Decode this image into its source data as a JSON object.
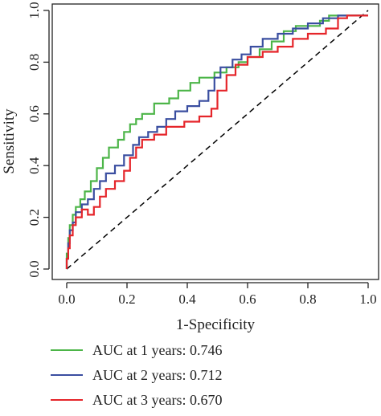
{
  "chart_data": {
    "type": "line",
    "title": "",
    "xlabel": "1-Specificity",
    "ylabel": "Sensitivity",
    "xlim": [
      0,
      1
    ],
    "ylim": [
      0,
      1
    ],
    "x_ticks": [
      "0.0",
      "0.2",
      "0.4",
      "0.6",
      "0.8",
      "1.0"
    ],
    "y_ticks": [
      "0.0",
      "0.2",
      "0.4",
      "0.6",
      "0.8",
      "1.0"
    ],
    "grid": false,
    "legend_position": "bottom-left",
    "reference_line": {
      "style": "dashed",
      "from": [
        0,
        0
      ],
      "to": [
        1,
        1
      ],
      "color": "#000000"
    },
    "series": [
      {
        "name": "AUC at 1 years: 0.746",
        "color": "#4cb548",
        "points": [
          [
            0,
            0
          ],
          [
            0,
            0.06
          ],
          [
            0.005,
            0.06
          ],
          [
            0.005,
            0.12
          ],
          [
            0.01,
            0.12
          ],
          [
            0.01,
            0.17
          ],
          [
            0.02,
            0.17
          ],
          [
            0.02,
            0.21
          ],
          [
            0.03,
            0.21
          ],
          [
            0.03,
            0.24
          ],
          [
            0.045,
            0.24
          ],
          [
            0.045,
            0.27
          ],
          [
            0.06,
            0.27
          ],
          [
            0.06,
            0.3
          ],
          [
            0.08,
            0.3
          ],
          [
            0.08,
            0.34
          ],
          [
            0.1,
            0.34
          ],
          [
            0.1,
            0.39
          ],
          [
            0.12,
            0.39
          ],
          [
            0.12,
            0.43
          ],
          [
            0.14,
            0.43
          ],
          [
            0.14,
            0.47
          ],
          [
            0.17,
            0.47
          ],
          [
            0.17,
            0.5
          ],
          [
            0.19,
            0.5
          ],
          [
            0.19,
            0.53
          ],
          [
            0.21,
            0.53
          ],
          [
            0.21,
            0.56
          ],
          [
            0.23,
            0.56
          ],
          [
            0.23,
            0.58
          ],
          [
            0.25,
            0.58
          ],
          [
            0.25,
            0.6
          ],
          [
            0.29,
            0.6
          ],
          [
            0.29,
            0.64
          ],
          [
            0.34,
            0.64
          ],
          [
            0.34,
            0.66
          ],
          [
            0.37,
            0.66
          ],
          [
            0.37,
            0.69
          ],
          [
            0.41,
            0.69
          ],
          [
            0.41,
            0.72
          ],
          [
            0.44,
            0.72
          ],
          [
            0.44,
            0.74
          ],
          [
            0.49,
            0.74
          ],
          [
            0.49,
            0.76
          ],
          [
            0.53,
            0.76
          ],
          [
            0.53,
            0.78
          ],
          [
            0.57,
            0.78
          ],
          [
            0.57,
            0.8
          ],
          [
            0.6,
            0.8
          ],
          [
            0.6,
            0.82
          ],
          [
            0.64,
            0.82
          ],
          [
            0.64,
            0.85
          ],
          [
            0.68,
            0.85
          ],
          [
            0.68,
            0.88
          ],
          [
            0.72,
            0.88
          ],
          [
            0.72,
            0.92
          ],
          [
            0.76,
            0.92
          ],
          [
            0.76,
            0.94
          ],
          [
            0.84,
            0.94
          ],
          [
            0.84,
            0.96
          ],
          [
            0.87,
            0.96
          ],
          [
            0.87,
            0.98
          ],
          [
            1,
            0.98
          ]
        ]
      },
      {
        "name": "AUC at 2 years: 0.712",
        "color": "#3a4ea0",
        "points": [
          [
            0,
            0
          ],
          [
            0,
            0.04
          ],
          [
            0.005,
            0.04
          ],
          [
            0.005,
            0.1
          ],
          [
            0.01,
            0.1
          ],
          [
            0.01,
            0.15
          ],
          [
            0.02,
            0.15
          ],
          [
            0.02,
            0.18
          ],
          [
            0.03,
            0.18
          ],
          [
            0.03,
            0.22
          ],
          [
            0.05,
            0.22
          ],
          [
            0.05,
            0.25
          ],
          [
            0.07,
            0.25
          ],
          [
            0.07,
            0.27
          ],
          [
            0.09,
            0.27
          ],
          [
            0.09,
            0.31
          ],
          [
            0.11,
            0.31
          ],
          [
            0.11,
            0.34
          ],
          [
            0.13,
            0.34
          ],
          [
            0.13,
            0.37
          ],
          [
            0.16,
            0.37
          ],
          [
            0.16,
            0.4
          ],
          [
            0.19,
            0.4
          ],
          [
            0.19,
            0.44
          ],
          [
            0.22,
            0.44
          ],
          [
            0.22,
            0.48
          ],
          [
            0.24,
            0.48
          ],
          [
            0.24,
            0.51
          ],
          [
            0.27,
            0.51
          ],
          [
            0.27,
            0.53
          ],
          [
            0.3,
            0.53
          ],
          [
            0.3,
            0.55
          ],
          [
            0.33,
            0.55
          ],
          [
            0.33,
            0.58
          ],
          [
            0.36,
            0.58
          ],
          [
            0.36,
            0.61
          ],
          [
            0.4,
            0.61
          ],
          [
            0.4,
            0.63
          ],
          [
            0.44,
            0.63
          ],
          [
            0.44,
            0.65
          ],
          [
            0.47,
            0.65
          ],
          [
            0.47,
            0.69
          ],
          [
            0.49,
            0.69
          ],
          [
            0.49,
            0.74
          ],
          [
            0.51,
            0.74
          ],
          [
            0.51,
            0.78
          ],
          [
            0.55,
            0.78
          ],
          [
            0.55,
            0.81
          ],
          [
            0.58,
            0.81
          ],
          [
            0.58,
            0.83
          ],
          [
            0.61,
            0.83
          ],
          [
            0.61,
            0.86
          ],
          [
            0.65,
            0.86
          ],
          [
            0.65,
            0.89
          ],
          [
            0.7,
            0.89
          ],
          [
            0.7,
            0.91
          ],
          [
            0.75,
            0.91
          ],
          [
            0.75,
            0.93
          ],
          [
            0.8,
            0.93
          ],
          [
            0.8,
            0.95
          ],
          [
            0.85,
            0.95
          ],
          [
            0.85,
            0.97
          ],
          [
            0.9,
            0.97
          ],
          [
            0.9,
            0.98
          ],
          [
            1,
            0.98
          ]
        ]
      },
      {
        "name": "AUC at 3 years: 0.670",
        "color": "#e5252a",
        "points": [
          [
            0,
            0
          ],
          [
            0,
            0.04
          ],
          [
            0.005,
            0.04
          ],
          [
            0.005,
            0.08
          ],
          [
            0.01,
            0.08
          ],
          [
            0.01,
            0.13
          ],
          [
            0.02,
            0.13
          ],
          [
            0.02,
            0.17
          ],
          [
            0.03,
            0.17
          ],
          [
            0.03,
            0.2
          ],
          [
            0.05,
            0.2
          ],
          [
            0.05,
            0.23
          ],
          [
            0.07,
            0.23
          ],
          [
            0.07,
            0.21
          ],
          [
            0.09,
            0.21
          ],
          [
            0.09,
            0.24
          ],
          [
            0.11,
            0.24
          ],
          [
            0.11,
            0.28
          ],
          [
            0.13,
            0.28
          ],
          [
            0.13,
            0.31
          ],
          [
            0.16,
            0.31
          ],
          [
            0.16,
            0.34
          ],
          [
            0.19,
            0.34
          ],
          [
            0.19,
            0.38
          ],
          [
            0.21,
            0.38
          ],
          [
            0.21,
            0.43
          ],
          [
            0.23,
            0.43
          ],
          [
            0.23,
            0.47
          ],
          [
            0.25,
            0.47
          ],
          [
            0.25,
            0.5
          ],
          [
            0.29,
            0.5
          ],
          [
            0.29,
            0.52
          ],
          [
            0.33,
            0.52
          ],
          [
            0.33,
            0.55
          ],
          [
            0.39,
            0.55
          ],
          [
            0.39,
            0.57
          ],
          [
            0.44,
            0.57
          ],
          [
            0.44,
            0.59
          ],
          [
            0.48,
            0.59
          ],
          [
            0.48,
            0.62
          ],
          [
            0.5,
            0.62
          ],
          [
            0.5,
            0.69
          ],
          [
            0.53,
            0.69
          ],
          [
            0.53,
            0.75
          ],
          [
            0.56,
            0.75
          ],
          [
            0.56,
            0.79
          ],
          [
            0.6,
            0.79
          ],
          [
            0.6,
            0.82
          ],
          [
            0.65,
            0.82
          ],
          [
            0.65,
            0.84
          ],
          [
            0.7,
            0.84
          ],
          [
            0.7,
            0.86
          ],
          [
            0.75,
            0.86
          ],
          [
            0.75,
            0.89
          ],
          [
            0.8,
            0.89
          ],
          [
            0.8,
            0.91
          ],
          [
            0.86,
            0.91
          ],
          [
            0.86,
            0.93
          ],
          [
            0.9,
            0.93
          ],
          [
            0.9,
            0.97
          ],
          [
            0.93,
            0.97
          ],
          [
            0.93,
            0.98
          ],
          [
            1,
            0.98
          ]
        ]
      }
    ]
  }
}
